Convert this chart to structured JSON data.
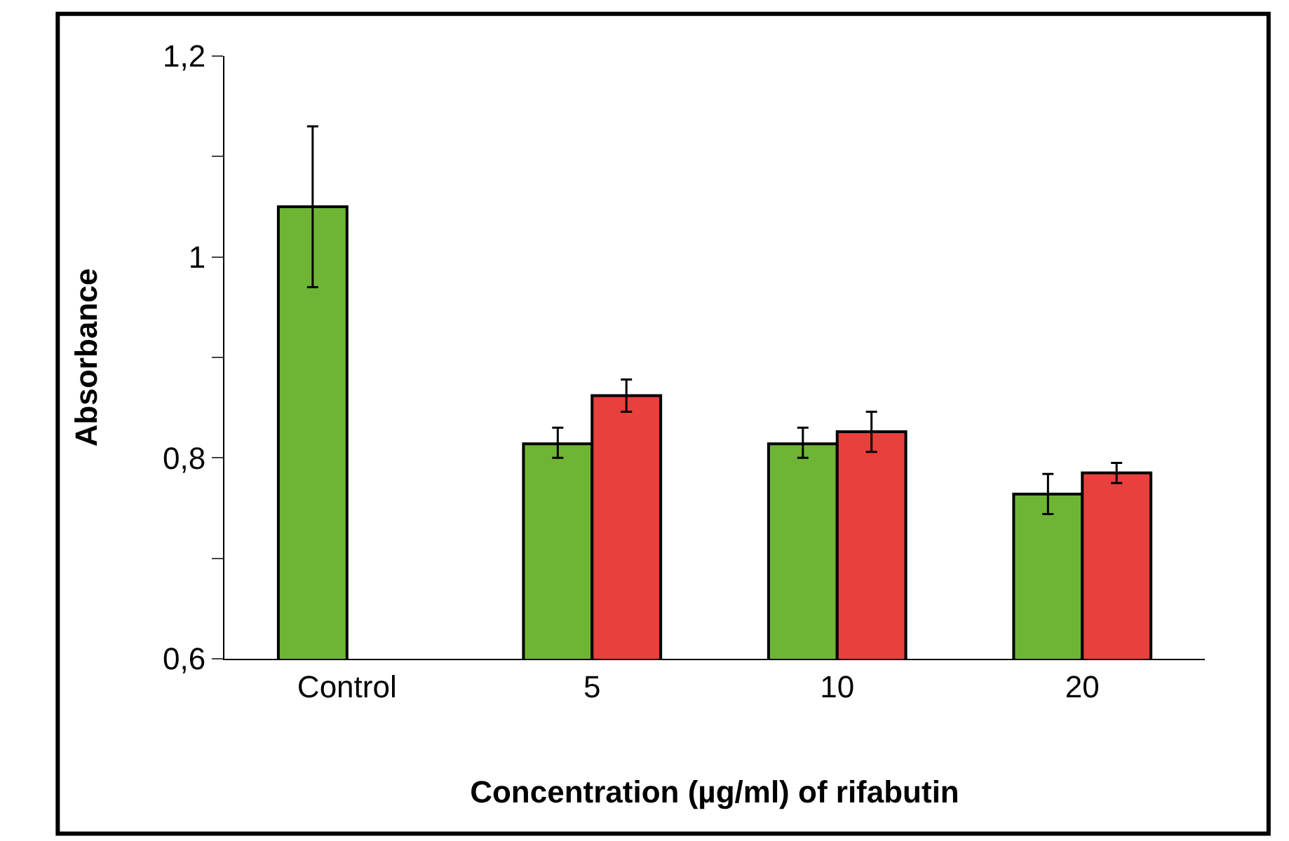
{
  "chart_data": {
    "type": "bar",
    "xlabel": "Concentration (µg/ml) of rifabutin",
    "ylabel": "Absorbance",
    "categories": [
      "Control",
      "5",
      "10",
      "20"
    ],
    "series": [
      {
        "color": "#6fb535",
        "values": [
          1.05,
          0.814,
          0.814,
          0.764
        ],
        "errors": [
          [
            0.97,
            1.13
          ],
          [
            0.8,
            0.83
          ],
          [
            0.8,
            0.83
          ],
          [
            0.744,
            0.784
          ]
        ]
      },
      {
        "color": "#e8403c",
        "values": [
          null,
          0.862,
          0.826,
          0.785
        ],
        "errors": [
          null,
          [
            0.846,
            0.878
          ],
          [
            0.806,
            0.846
          ],
          [
            0.775,
            0.795
          ]
        ]
      }
    ],
    "ylim": [
      0.6,
      1.2
    ],
    "yticks": [
      {
        "value": 0.6,
        "label": "0,6"
      },
      {
        "value": 0.7,
        "label": null
      },
      {
        "value": 0.8,
        "label": "0,8"
      },
      {
        "value": 0.9,
        "label": null
      },
      {
        "value": 1.0,
        "label": "1"
      },
      {
        "value": 1.1,
        "label": null
      },
      {
        "value": 1.2,
        "label": "1,2"
      }
    ]
  }
}
